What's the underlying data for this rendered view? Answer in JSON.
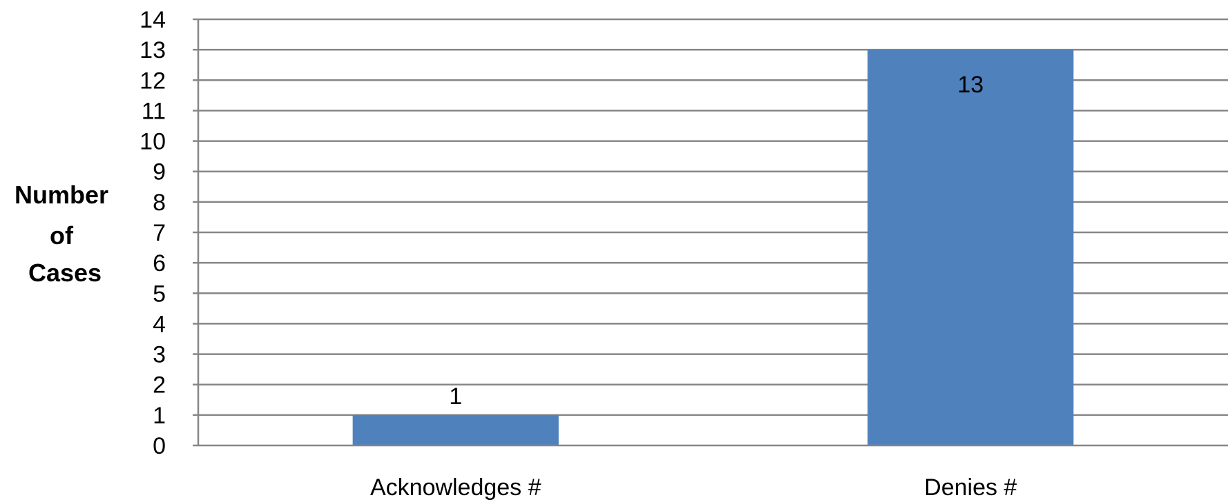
{
  "chart_data": {
    "type": "bar",
    "categories": [
      "Acknowledges #",
      "Denies #"
    ],
    "values": [
      1,
      13
    ],
    "data_labels": [
      "1",
      "13"
    ],
    "title": "",
    "xlabel": "",
    "ylabel_lines": [
      "Number",
      "of",
      "Cases"
    ],
    "ylim": [
      0,
      14
    ],
    "yticks": [
      "0",
      "1",
      "2",
      "3",
      "4",
      "5",
      "6",
      "7",
      "8",
      "9",
      "10",
      "11",
      "12",
      "13",
      "14"
    ],
    "grid": true,
    "legend": "none",
    "bar_color": "#4F81BD",
    "grid_color": "#868686"
  }
}
